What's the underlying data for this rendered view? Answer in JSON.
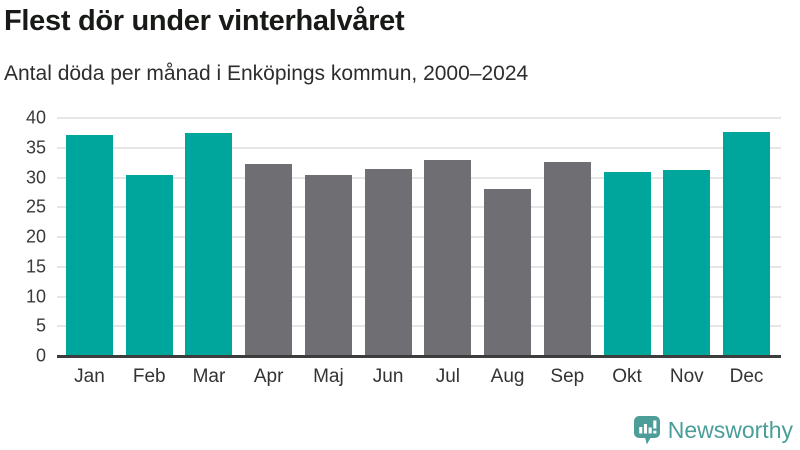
{
  "page": {
    "background": "#ffffff"
  },
  "header": {
    "title": "Flest dör under vinterhalvåret",
    "subtitle": "Antal döda per månad i Enköpings kommun, 2000–2024"
  },
  "chart_data": {
    "type": "bar",
    "title": "Flest dör under vinterhalvåret",
    "subtitle": "Antal döda per månad i Enköpings kommun, 2000–2024",
    "categories": [
      "Jan",
      "Feb",
      "Mar",
      "Apr",
      "Maj",
      "Jun",
      "Jul",
      "Aug",
      "Sep",
      "Okt",
      "Nov",
      "Dec"
    ],
    "values": [
      37.2,
      30.5,
      37.4,
      32.2,
      30.5,
      31.4,
      33.0,
      28.0,
      32.6,
      31.0,
      31.2,
      37.7
    ],
    "bar_colors": [
      "#00a69c",
      "#00a69c",
      "#00a69c",
      "#6e6e73",
      "#6e6e73",
      "#6e6e73",
      "#6e6e73",
      "#6e6e73",
      "#6e6e73",
      "#00a69c",
      "#00a69c",
      "#00a69c"
    ],
    "highlighted_categories": [
      "Jan",
      "Feb",
      "Mar",
      "Okt",
      "Nov",
      "Dec"
    ],
    "colors": {
      "highlight_teal": "#00a69c",
      "neutral_gray": "#6e6e73",
      "gridline": "#e6e6e6",
      "axis": "#3d3d3d"
    },
    "xlabel": "",
    "ylabel": "",
    "ylim": [
      0,
      40
    ],
    "yticks": [
      0,
      5,
      10,
      15,
      20,
      25,
      30,
      35,
      40
    ],
    "grid": "horizontal",
    "legend": "none"
  },
  "footer": {
    "brand": "Newsworthy",
    "brand_color": "#4a9e99",
    "logo_color": "#4d9d99"
  }
}
